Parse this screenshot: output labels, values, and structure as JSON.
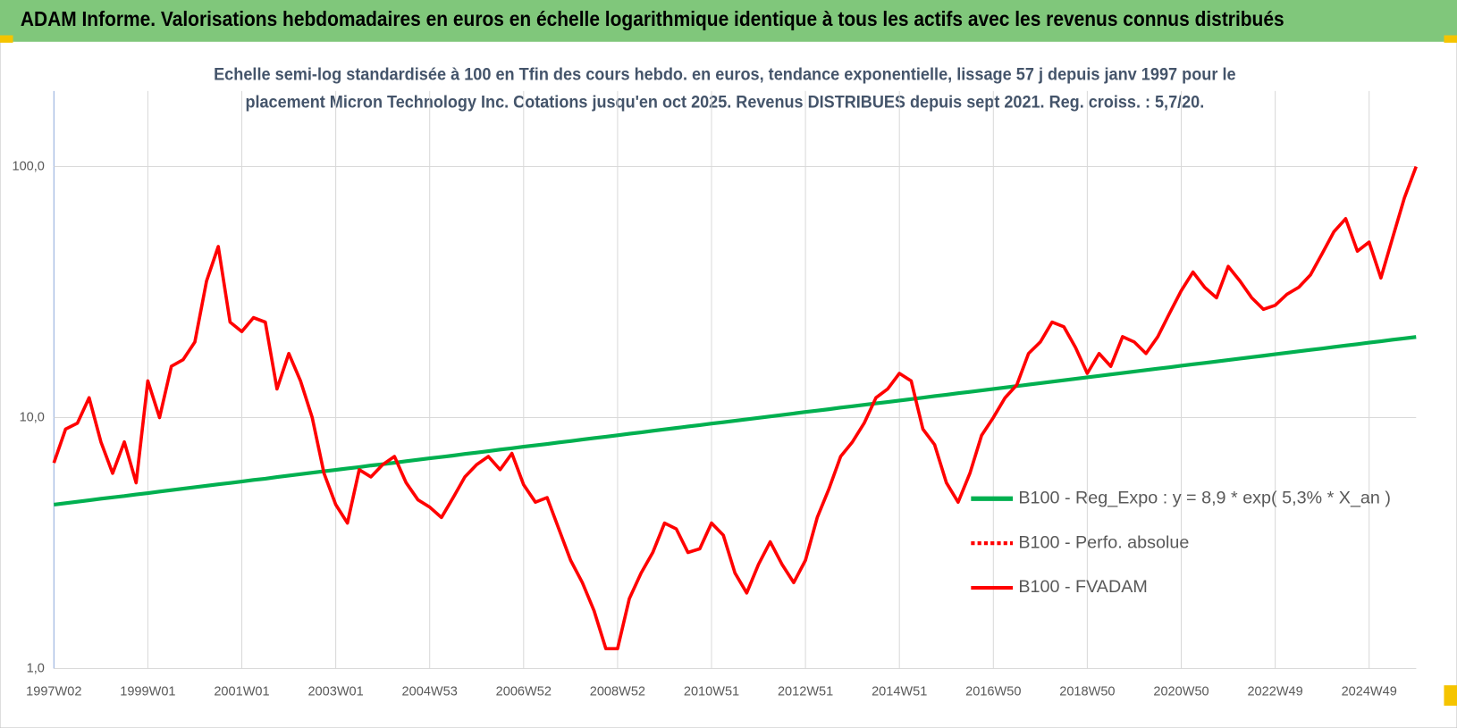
{
  "chart_data": {
    "type": "line",
    "title": "ADAM Informe. Valorisations hebdomadaires en euros en échelle logarithmique identique à tous les actifs avec les revenus connus distribués",
    "subtitle": [
      "Echelle semi-log standardisée à 100 en Tfin des cours hebdo. en euros, tendance exponentielle, lissage 57 j depuis janv 1997 pour le",
      "placement Micron Technology Inc. Cotations jusqu'en oct 2025. Revenus DISTRIBUES depuis sept 2021. Reg. croiss. : 5,7/20."
    ],
    "log_scale": true,
    "grid": true,
    "ylim": [
      1,
      200
    ],
    "yticks": [
      {
        "value": 1,
        "label": "1,0"
      },
      {
        "value": 10,
        "label": "10,0"
      },
      {
        "value": 100,
        "label": "100,0"
      }
    ],
    "categories": [
      "1997W02",
      null,
      null,
      null,
      null,
      null,
      null,
      null,
      "1999W01",
      null,
      null,
      null,
      null,
      null,
      null,
      null,
      "2001W01",
      null,
      null,
      null,
      null,
      null,
      null,
      null,
      "2003W01",
      null,
      null,
      null,
      null,
      null,
      null,
      null,
      "2004W53",
      null,
      null,
      null,
      null,
      null,
      null,
      null,
      "2006W52",
      null,
      null,
      null,
      null,
      null,
      null,
      null,
      "2008W52",
      null,
      null,
      null,
      null,
      null,
      null,
      null,
      "2010W51",
      null,
      null,
      null,
      null,
      null,
      null,
      null,
      "2012W51",
      null,
      null,
      null,
      null,
      null,
      null,
      null,
      "2014W51",
      null,
      null,
      null,
      null,
      null,
      null,
      null,
      "2016W50",
      null,
      null,
      null,
      null,
      null,
      null,
      null,
      "2018W50",
      null,
      null,
      null,
      null,
      null,
      null,
      null,
      "2020W50",
      null,
      null,
      null,
      null,
      null,
      null,
      null,
      "2022W49",
      null,
      null,
      null,
      null,
      null,
      null,
      null,
      "2024W49",
      null,
      null,
      null,
      null
    ],
    "series": [
      {
        "name": "B100 - Reg_Expo : y = 8,9 * exp( 5,3% *  X_an )",
        "color": "#00b050",
        "dash": false,
        "values": [
          4.5,
          4.56,
          4.62,
          4.68,
          4.75,
          4.81,
          4.87,
          4.94,
          5.0,
          5.07,
          5.14,
          5.21,
          5.28,
          5.35,
          5.42,
          5.49,
          5.56,
          5.64,
          5.71,
          5.79,
          5.87,
          5.95,
          6.03,
          6.11,
          6.19,
          6.27,
          6.35,
          6.44,
          6.52,
          6.61,
          6.7,
          6.79,
          6.88,
          6.97,
          7.06,
          7.16,
          7.25,
          7.35,
          7.45,
          7.55,
          7.65,
          7.75,
          7.85,
          7.96,
          8.06,
          8.17,
          8.28,
          8.39,
          8.5,
          8.62,
          8.73,
          8.85,
          8.97,
          9.09,
          9.21,
          9.33,
          9.46,
          9.58,
          9.71,
          9.84,
          9.97,
          10.11,
          10.24,
          10.38,
          10.52,
          10.66,
          10.8,
          10.95,
          11.09,
          11.24,
          11.39,
          11.54,
          11.69,
          11.85,
          12.01,
          12.17,
          12.33,
          12.5,
          12.66,
          12.83,
          13.0,
          13.18,
          13.35,
          13.53,
          13.71,
          13.9,
          14.08,
          14.27,
          14.46,
          14.66,
          14.85,
          15.05,
          15.25,
          15.46,
          15.66,
          15.87,
          16.08,
          16.3,
          16.51,
          16.73,
          16.95,
          17.18,
          17.41,
          17.64,
          17.88,
          18.12,
          18.36,
          18.6,
          18.85,
          19.1,
          19.36,
          19.62,
          19.88,
          20.14,
          20.41,
          20.68,
          20.95
        ]
      },
      {
        "name": "B100 - Perfo. absolue",
        "color": "#ff0000",
        "dash": true,
        "values": [
          null,
          null,
          null,
          null,
          null,
          null,
          null,
          null,
          null,
          null,
          null,
          null,
          null,
          null,
          null,
          null,
          null,
          null,
          null,
          null,
          null,
          null,
          null,
          null,
          null,
          null,
          null,
          null,
          null,
          null,
          null,
          null,
          null,
          null,
          null,
          null,
          null,
          null,
          null,
          null,
          null,
          null,
          null,
          null,
          null,
          null,
          null,
          null,
          null,
          null,
          null,
          null,
          null,
          null,
          null,
          null,
          null,
          null,
          null,
          null,
          null,
          null,
          null,
          null,
          null,
          null,
          null,
          null,
          null,
          null,
          null,
          null,
          null,
          null,
          null,
          null,
          null,
          null,
          null,
          null,
          null,
          null,
          null,
          null,
          null,
          null,
          null,
          null,
          null,
          null,
          null,
          null,
          null,
          null,
          null,
          null,
          null,
          null,
          null,
          null,
          null,
          null,
          null,
          null,
          null,
          null,
          null,
          null,
          null,
          null,
          null,
          null,
          null,
          null,
          null,
          null,
          null
        ]
      },
      {
        "name": "B100 - FVADAM",
        "color": "#ff0000",
        "dash": false,
        "values": [
          6.6,
          9.0,
          9.5,
          12.0,
          8.0,
          6.0,
          8.0,
          5.5,
          14,
          10,
          16,
          17,
          20,
          35,
          48,
          24,
          22,
          25,
          24,
          13,
          18,
          14,
          10,
          6,
          4.5,
          3.8,
          6.2,
          5.8,
          6.5,
          7.0,
          5.5,
          4.7,
          4.4,
          4.0,
          4.8,
          5.8,
          6.5,
          7.0,
          6.2,
          7.2,
          5.4,
          4.6,
          4.8,
          3.6,
          2.7,
          2.2,
          1.7,
          1.2,
          1.2,
          1.9,
          2.4,
          2.9,
          3.8,
          3.6,
          2.9,
          3.0,
          3.8,
          3.4,
          2.4,
          2.0,
          2.6,
          3.2,
          2.6,
          2.2,
          2.7,
          4.0,
          5.2,
          7.0,
          8.0,
          9.5,
          12,
          13,
          15,
          14,
          9,
          7.8,
          5.5,
          4.6,
          6.0,
          8.5,
          10,
          12,
          13.5,
          18,
          20,
          24,
          23,
          19,
          15,
          18,
          16,
          21,
          20,
          18,
          21,
          26,
          32,
          38,
          33,
          30,
          40,
          35,
          30,
          27,
          28,
          31,
          33,
          37,
          45,
          55,
          62,
          46,
          50,
          36,
          52,
          75,
          100
        ]
      }
    ]
  }
}
